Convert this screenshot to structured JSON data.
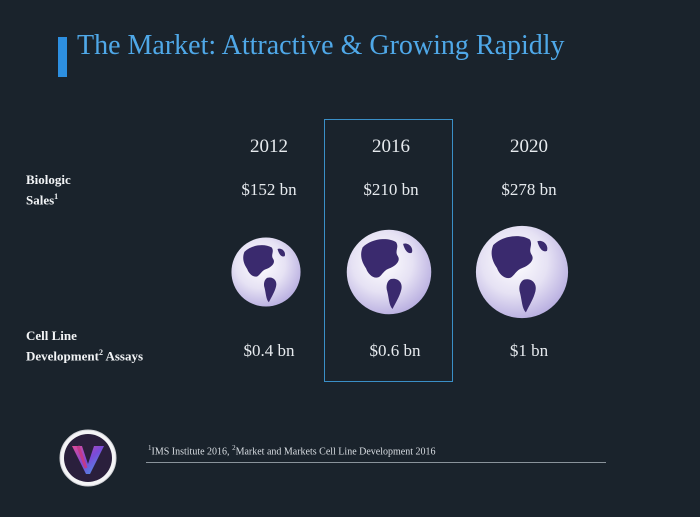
{
  "slide": {
    "title": "The Market: Attractive & Growing Rapidly"
  },
  "rows": {
    "biologic_label": "Biologic",
    "biologic_label_2": "Sales",
    "biologic_sup": "1",
    "cld_label": "Cell Line",
    "cld_label_2": "Development",
    "cld_sup": "2",
    "cld_label_3": " Assays"
  },
  "columns": [
    {
      "year": "2012",
      "biologic_sales": "$152 bn",
      "cld_assays": "$0.4 bn"
    },
    {
      "year": "2016",
      "biologic_sales": "$210 bn",
      "cld_assays": "$0.6 bn"
    },
    {
      "year": "2020",
      "biologic_sales": "$278 bn",
      "cld_assays": "$1 bn"
    }
  ],
  "footnote": {
    "sup1": "1",
    "text1": "IMS Institute 2016, ",
    "sup2": "2",
    "text2": "Market and Markets Cell Line Development 2016"
  },
  "icons": {
    "globe": "globe-icon",
    "logo": "logo-icon"
  },
  "colors": {
    "background": "#1a232c",
    "title": "#4fa8e8",
    "accent": "#2d8fe0",
    "highlight_border": "#3a8fc7"
  }
}
